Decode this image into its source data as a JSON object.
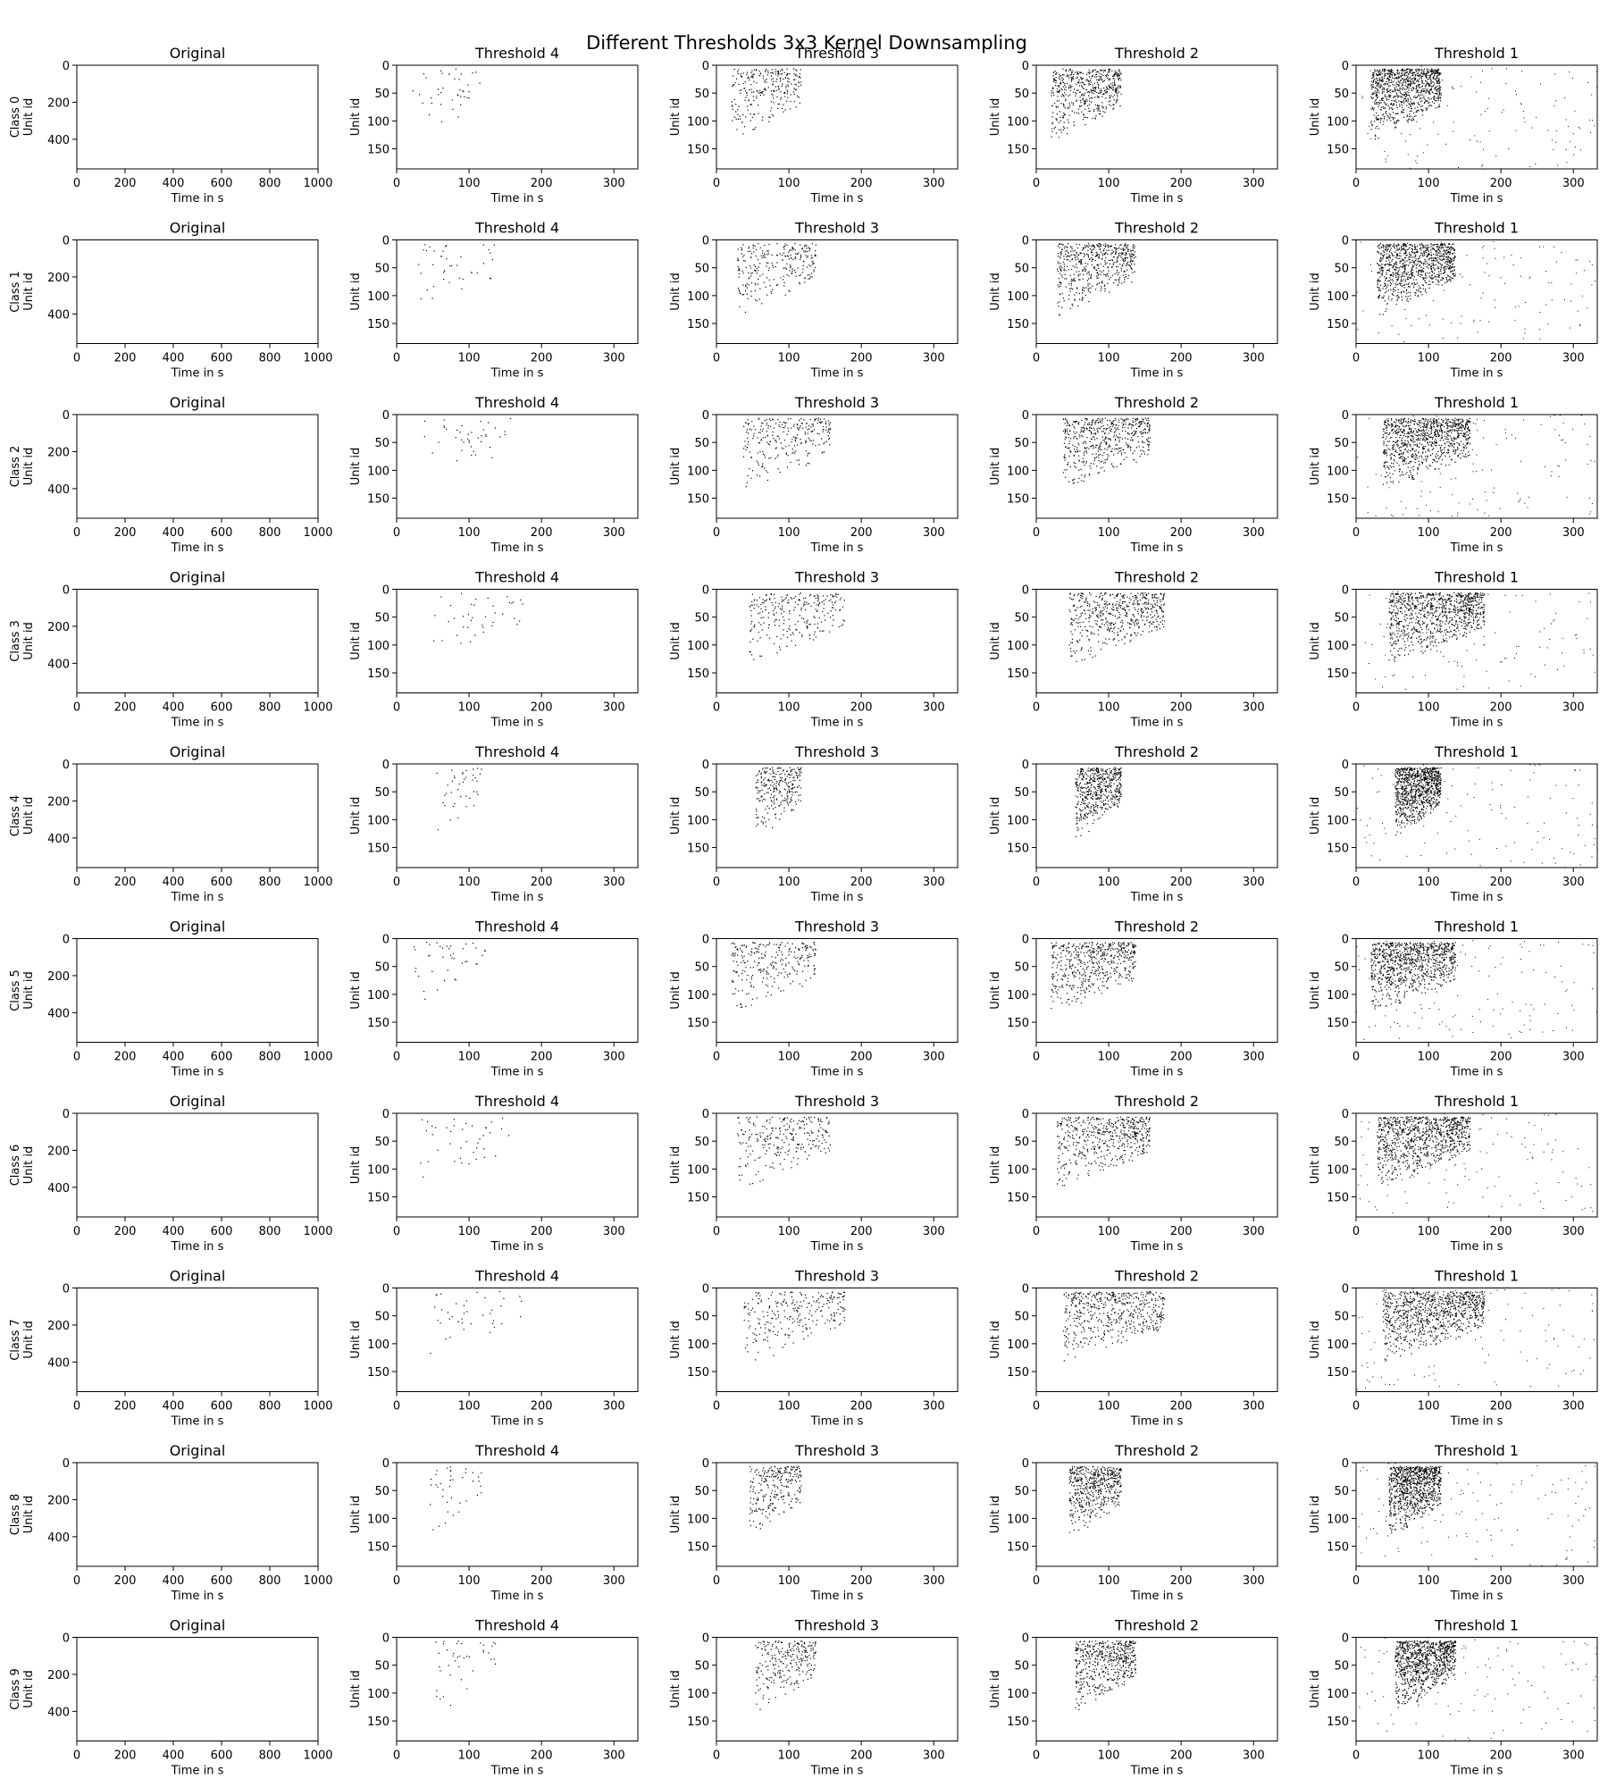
{
  "figure": {
    "title": "Different Thresholds 3x3 Kernel Downsampling",
    "ylabel": "Unit id",
    "xlabel": "Time in s",
    "class_labels": [
      "Class 0",
      "Class 1",
      "Class 2",
      "Class 3",
      "Class 4",
      "Class 5",
      "Class 6",
      "Class 7",
      "Class 8",
      "Class 9"
    ]
  },
  "chart_data": [
    {
      "type": "scatter",
      "title": "Original",
      "xlabel": "Time in s",
      "ylabel": "Unit id",
      "xlim": [
        0,
        1000
      ],
      "ylim": [
        560,
        0
      ],
      "xticks": [
        0,
        200,
        400,
        600,
        800,
        1000
      ],
      "yticks": [
        0,
        200,
        400
      ],
      "marker_color": "#bdbdbd",
      "grid": false
    },
    {
      "type": "scatter",
      "title": "Threshold 4",
      "xlabel": "Time in s",
      "ylabel": "Unit id",
      "xlim": [
        0,
        333
      ],
      "ylim": [
        186,
        0
      ],
      "xticks": [
        0,
        100,
        200,
        300
      ],
      "yticks": [
        0,
        50,
        100,
        150
      ],
      "marker_color": "#000000",
      "grid": false
    },
    {
      "type": "scatter",
      "title": "Threshold 3",
      "xlabel": "Time in s",
      "ylabel": "Unit id",
      "xlim": [
        0,
        333
      ],
      "ylim": [
        186,
        0
      ],
      "xticks": [
        0,
        100,
        200,
        300
      ],
      "yticks": [
        0,
        50,
        100,
        150
      ],
      "marker_color": "#000000",
      "grid": false
    },
    {
      "type": "scatter",
      "title": "Threshold 2",
      "xlabel": "Time in s",
      "ylabel": "Unit id",
      "xlim": [
        0,
        333
      ],
      "ylim": [
        186,
        0
      ],
      "xticks": [
        0,
        100,
        200,
        300
      ],
      "yticks": [
        0,
        50,
        100,
        150
      ],
      "marker_color": "#000000",
      "grid": false
    },
    {
      "type": "scatter",
      "title": "Threshold 1",
      "xlabel": "Time in s",
      "ylabel": "Unit id",
      "xlim": [
        0,
        333
      ],
      "ylim": [
        186,
        0
      ],
      "xticks": [
        0,
        100,
        200,
        300
      ],
      "yticks": [
        0,
        50,
        100,
        150
      ],
      "marker_color": "#000000",
      "grid": false
    }
  ]
}
